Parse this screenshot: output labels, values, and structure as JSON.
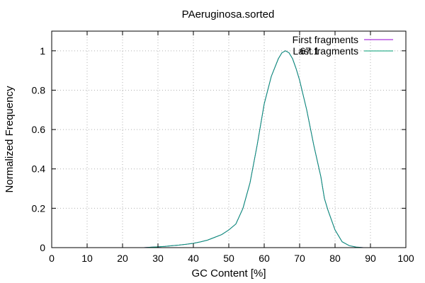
{
  "chart_data": {
    "type": "line",
    "title": "PAeruginosa.sorted",
    "xlabel": "GC Content [%]",
    "ylabel": "Normalized Frequency",
    "xlim": [
      0,
      100
    ],
    "ylim": [
      0,
      1.1
    ],
    "xticks": [
      0,
      10,
      20,
      30,
      40,
      50,
      60,
      70,
      80,
      90,
      100
    ],
    "yticks": [
      0,
      0.2,
      0.4,
      0.6,
      0.8,
      1
    ],
    "grid": true,
    "legend_position": "top-right",
    "annotation": "67.1",
    "series": [
      {
        "name": "First fragments",
        "color": "#9400d3",
        "x": [
          26,
          28,
          30,
          32,
          34,
          36,
          38,
          40,
          42,
          44,
          46,
          48,
          50,
          52,
          54,
          56,
          58,
          60,
          62,
          64,
          65,
          66,
          67,
          68,
          69,
          70,
          72,
          74,
          76,
          77,
          78,
          80,
          82,
          84,
          86,
          88
        ],
        "y": [
          0.0,
          0.002,
          0.004,
          0.006,
          0.01,
          0.013,
          0.017,
          0.022,
          0.029,
          0.038,
          0.052,
          0.066,
          0.09,
          0.12,
          0.2,
          0.33,
          0.52,
          0.73,
          0.87,
          0.96,
          0.99,
          1.0,
          0.99,
          0.96,
          0.91,
          0.85,
          0.7,
          0.52,
          0.36,
          0.25,
          0.19,
          0.09,
          0.03,
          0.01,
          0.003,
          0.0
        ]
      },
      {
        "name": "Last fragments",
        "color": "#009e73",
        "x": [
          26,
          28,
          30,
          32,
          34,
          36,
          38,
          40,
          42,
          44,
          46,
          48,
          50,
          52,
          54,
          56,
          58,
          60,
          62,
          64,
          65,
          66,
          67,
          68,
          69,
          70,
          72,
          74,
          76,
          77,
          78,
          80,
          82,
          84,
          86,
          88
        ],
        "y": [
          0.0,
          0.002,
          0.004,
          0.006,
          0.01,
          0.013,
          0.017,
          0.022,
          0.029,
          0.038,
          0.052,
          0.066,
          0.09,
          0.12,
          0.2,
          0.33,
          0.52,
          0.73,
          0.87,
          0.96,
          0.99,
          1.0,
          0.99,
          0.96,
          0.91,
          0.85,
          0.7,
          0.52,
          0.36,
          0.25,
          0.19,
          0.09,
          0.03,
          0.01,
          0.003,
          0.0
        ]
      }
    ]
  }
}
